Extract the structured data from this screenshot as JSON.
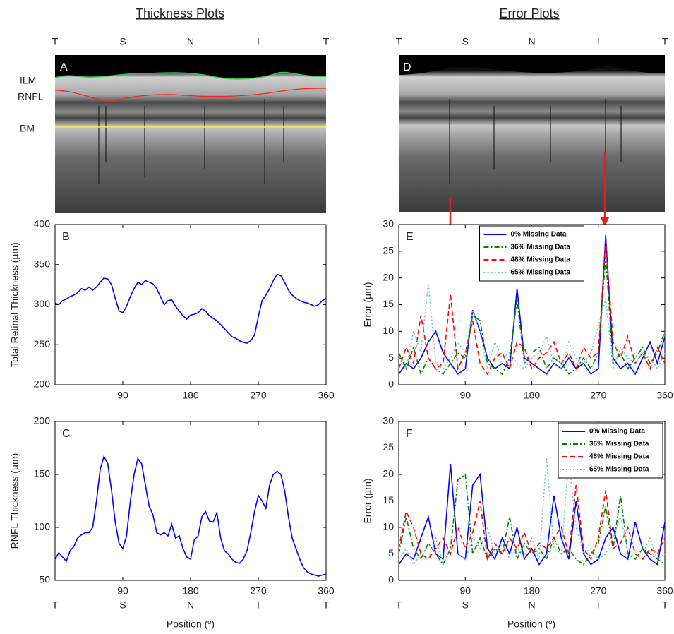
{
  "column_titles": [
    "Thickness Plots",
    "Error Plots"
  ],
  "position_labels": [
    "T",
    "S",
    "N",
    "I",
    "T"
  ],
  "xlabel": "Position (º)",
  "images": [
    {
      "label": "A",
      "layer_labels": [
        "ILM",
        "RNFL",
        "BM"
      ]
    },
    {
      "label": "D"
    }
  ],
  "chart_data": [
    {
      "type": "line",
      "label": "B",
      "ylabel": "Total Retinal Thickness (µm)",
      "color": "#0000ff",
      "linestyle": "solid",
      "xlim": [
        0,
        360
      ],
      "xticks": [
        90,
        180,
        270,
        360
      ],
      "ylim": [
        200,
        400
      ],
      "yticks": [
        200,
        250,
        300,
        350,
        400
      ],
      "x": [
        0,
        5,
        10,
        15,
        20,
        25,
        30,
        35,
        40,
        45,
        50,
        55,
        60,
        65,
        70,
        75,
        80,
        85,
        90,
        95,
        100,
        105,
        110,
        115,
        120,
        125,
        130,
        135,
        140,
        145,
        150,
        155,
        160,
        165,
        170,
        175,
        180,
        185,
        190,
        195,
        200,
        205,
        210,
        215,
        220,
        225,
        230,
        235,
        240,
        245,
        250,
        255,
        260,
        265,
        270,
        275,
        280,
        285,
        290,
        295,
        300,
        305,
        310,
        315,
        320,
        325,
        330,
        335,
        340,
        345,
        350,
        355,
        360
      ],
      "values": [
        302,
        300,
        305,
        307,
        310,
        312,
        315,
        320,
        318,
        322,
        318,
        322,
        328,
        333,
        332,
        325,
        308,
        292,
        290,
        298,
        310,
        320,
        328,
        325,
        330,
        328,
        326,
        320,
        310,
        300,
        305,
        306,
        298,
        292,
        286,
        282,
        287,
        288,
        290,
        295,
        292,
        286,
        283,
        280,
        275,
        270,
        265,
        260,
        258,
        255,
        253,
        252,
        255,
        262,
        285,
        305,
        312,
        320,
        330,
        338,
        336,
        328,
        318,
        312,
        308,
        305,
        303,
        302,
        300,
        298,
        300,
        305,
        308
      ]
    },
    {
      "type": "line",
      "label": "C",
      "ylabel": "RNFL Thickness (µm)",
      "color": "#0000ff",
      "linestyle": "solid",
      "xlim": [
        0,
        360
      ],
      "xticks": [
        90,
        180,
        270,
        360
      ],
      "ylim": [
        50,
        200
      ],
      "yticks": [
        50,
        100,
        150,
        200
      ],
      "x": [
        0,
        5,
        10,
        15,
        20,
        25,
        30,
        35,
        40,
        45,
        50,
        55,
        60,
        65,
        70,
        75,
        80,
        85,
        90,
        95,
        100,
        105,
        110,
        115,
        120,
        125,
        130,
        135,
        140,
        145,
        150,
        155,
        160,
        165,
        170,
        175,
        180,
        185,
        190,
        195,
        200,
        205,
        210,
        215,
        220,
        225,
        230,
        235,
        240,
        245,
        250,
        255,
        260,
        265,
        270,
        275,
        280,
        285,
        290,
        295,
        300,
        305,
        310,
        315,
        320,
        325,
        330,
        335,
        340,
        345,
        350,
        355,
        360
      ],
      "values": [
        70,
        76,
        72,
        68,
        78,
        82,
        90,
        93,
        95,
        95,
        100,
        125,
        155,
        167,
        160,
        135,
        105,
        85,
        80,
        92,
        125,
        150,
        165,
        160,
        140,
        120,
        112,
        95,
        93,
        95,
        92,
        103,
        90,
        92,
        80,
        72,
        70,
        88,
        92,
        110,
        115,
        106,
        105,
        114,
        90,
        78,
        75,
        70,
        67,
        66,
        70,
        78,
        95,
        115,
        130,
        125,
        118,
        140,
        150,
        153,
        150,
        135,
        110,
        90,
        80,
        70,
        62,
        58,
        56,
        55,
        54,
        55,
        56
      ]
    },
    {
      "type": "line",
      "label": "E",
      "ylabel": "Error (µm)",
      "legend": "upper center",
      "xlim": [
        0,
        360
      ],
      "xticks": [
        90,
        180,
        270,
        360
      ],
      "ylim": [
        0,
        30
      ],
      "yticks": [
        0,
        5,
        10,
        15,
        20,
        25,
        30
      ],
      "x": [
        0,
        10,
        20,
        30,
        40,
        50,
        60,
        70,
        80,
        90,
        100,
        110,
        120,
        130,
        140,
        150,
        160,
        170,
        180,
        190,
        200,
        210,
        220,
        230,
        240,
        250,
        260,
        270,
        280,
        290,
        300,
        310,
        320,
        330,
        340,
        350,
        360
      ],
      "series": [
        {
          "name": "0% Missing Data",
          "color": "#0000ff",
          "linestyle": "solid",
          "values": [
            2,
            4,
            3,
            5,
            8,
            10,
            6,
            4,
            2,
            3,
            14,
            10,
            5,
            3,
            4,
            3,
            18,
            5,
            4,
            3,
            2,
            4,
            3,
            5,
            3,
            4,
            2,
            3,
            28,
            5,
            3,
            4,
            2,
            5,
            8,
            4,
            9
          ]
        },
        {
          "name": "36% Missing Data",
          "color": "#008000",
          "linestyle": "dashdot",
          "values": [
            6,
            3,
            7,
            2,
            5,
            3,
            2,
            4,
            6,
            5,
            13,
            12,
            4,
            3,
            2,
            5,
            16,
            4,
            6,
            7,
            3,
            5,
            4,
            2,
            3,
            5,
            3,
            6,
            24,
            4,
            6,
            3,
            5,
            7,
            4,
            6,
            10
          ]
        },
        {
          "name": "48% Missing Data",
          "color": "#ff0000",
          "linestyle": "dashed",
          "values": [
            3,
            7,
            4,
            13,
            5,
            3,
            4,
            17,
            3,
            6,
            12,
            4,
            2,
            5,
            6,
            3,
            8,
            7,
            3,
            5,
            6,
            8,
            4,
            6,
            3,
            7,
            5,
            6,
            27,
            8,
            5,
            9,
            4,
            6,
            3,
            7,
            4
          ]
        },
        {
          "name": "65% Missing Data",
          "color": "#5cc8c8",
          "linestyle": "dotted",
          "values": [
            5,
            3,
            10,
            6,
            19,
            4,
            3,
            5,
            8,
            6,
            14,
            10,
            3,
            8,
            5,
            6,
            4,
            3,
            5,
            6,
            9,
            4,
            3,
            8,
            5,
            4,
            6,
            11,
            16,
            3,
            7,
            5,
            4,
            6,
            5,
            3,
            6
          ]
        }
      ]
    },
    {
      "type": "line",
      "label": "F",
      "ylabel": "Error (µm)",
      "legend": "upper right",
      "xlim": [
        0,
        360
      ],
      "xticks": [
        90,
        180,
        270,
        360
      ],
      "ylim": [
        0,
        30
      ],
      "yticks": [
        0,
        5,
        10,
        15,
        20,
        25,
        30
      ],
      "x": [
        0,
        10,
        20,
        30,
        40,
        50,
        60,
        70,
        80,
        90,
        100,
        110,
        120,
        130,
        140,
        150,
        160,
        170,
        180,
        190,
        200,
        210,
        220,
        230,
        240,
        250,
        260,
        270,
        280,
        290,
        300,
        310,
        320,
        330,
        340,
        350,
        360
      ],
      "series": [
        {
          "name": "0% Missing Data",
          "color": "#0000ff",
          "linestyle": "solid",
          "values": [
            3,
            5,
            4,
            8,
            12,
            5,
            4,
            22,
            5,
            4,
            18,
            20,
            6,
            4,
            8,
            5,
            10,
            4,
            6,
            3,
            5,
            16,
            8,
            4,
            15,
            5,
            3,
            4,
            8,
            10,
            5,
            4,
            11,
            6,
            4,
            3,
            11
          ]
        },
        {
          "name": "36% Missing Data",
          "color": "#008000",
          "linestyle": "dashdot",
          "values": [
            5,
            12,
            6,
            4,
            7,
            5,
            3,
            6,
            19,
            20,
            5,
            8,
            4,
            6,
            5,
            12,
            4,
            7,
            5,
            6,
            4,
            8,
            5,
            6,
            4,
            3,
            5,
            7,
            14,
            6,
            16,
            5,
            4,
            6,
            5,
            4,
            3
          ]
        },
        {
          "name": "48% Missing Data",
          "color": "#ff0000",
          "linestyle": "dashed",
          "values": [
            6,
            13,
            10,
            5,
            4,
            6,
            8,
            5,
            10,
            6,
            9,
            15,
            4,
            7,
            5,
            8,
            6,
            9,
            5,
            7,
            6,
            8,
            10,
            5,
            18,
            6,
            4,
            8,
            17,
            6,
            7,
            10,
            5,
            4,
            6,
            5,
            8
          ]
        },
        {
          "name": "65% Missing Data",
          "color": "#5cc8c8",
          "linestyle": "dotted",
          "values": [
            4,
            6,
            3,
            5,
            4,
            8,
            3,
            6,
            5,
            4,
            8,
            6,
            10,
            5,
            7,
            4,
            6,
            5,
            8,
            4,
            23,
            6,
            5,
            23,
            10,
            5,
            6,
            4,
            5,
            8,
            12,
            6,
            4,
            5,
            8,
            4,
            5
          ]
        }
      ]
    }
  ]
}
